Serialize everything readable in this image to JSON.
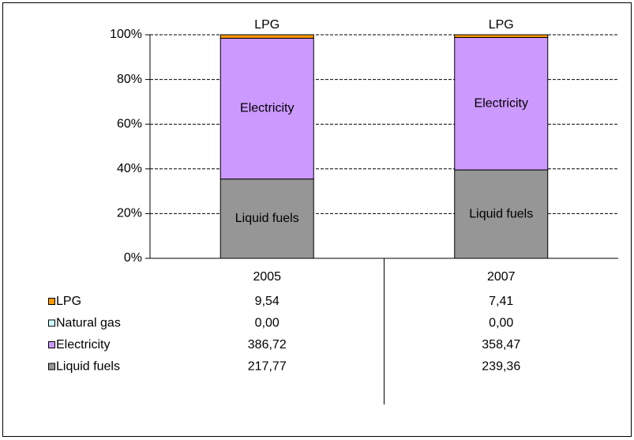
{
  "chart_data": {
    "type": "bar",
    "stacked": "percent",
    "categories": [
      "2005",
      "2007"
    ],
    "series": [
      {
        "name": "LPG",
        "color": "#ff9900",
        "values": [
          9.54,
          7.41
        ],
        "value_labels": [
          "9,54",
          "7,41"
        ]
      },
      {
        "name": "Natural gas",
        "color": "#ccffff",
        "values": [
          0,
          0
        ],
        "value_labels": [
          "0,00",
          "0,00"
        ]
      },
      {
        "name": "Electricity",
        "color": "#cc99ff",
        "values": [
          386.72,
          358.47
        ],
        "value_labels": [
          "386,72",
          "358,47"
        ]
      },
      {
        "name": "Liquid fuels",
        "color": "#969696",
        "values": [
          217.77,
          239.36
        ],
        "value_labels": [
          "217,77",
          "239,36"
        ]
      }
    ],
    "annotations": [
      {
        "series": 0,
        "position": "above"
      },
      {
        "series": 2,
        "position": "center"
      },
      {
        "series": 3,
        "position": "center"
      }
    ],
    "ylim": [
      0,
      100
    ],
    "yticks": [
      {
        "value": 0,
        "label": "0%"
      },
      {
        "value": 20,
        "label": "20%"
      },
      {
        "value": 40,
        "label": "40%"
      },
      {
        "value": 60,
        "label": "60%"
      },
      {
        "value": 80,
        "label": "80%"
      },
      {
        "value": 100,
        "label": "100%"
      }
    ],
    "grid": true,
    "data_table": true
  }
}
